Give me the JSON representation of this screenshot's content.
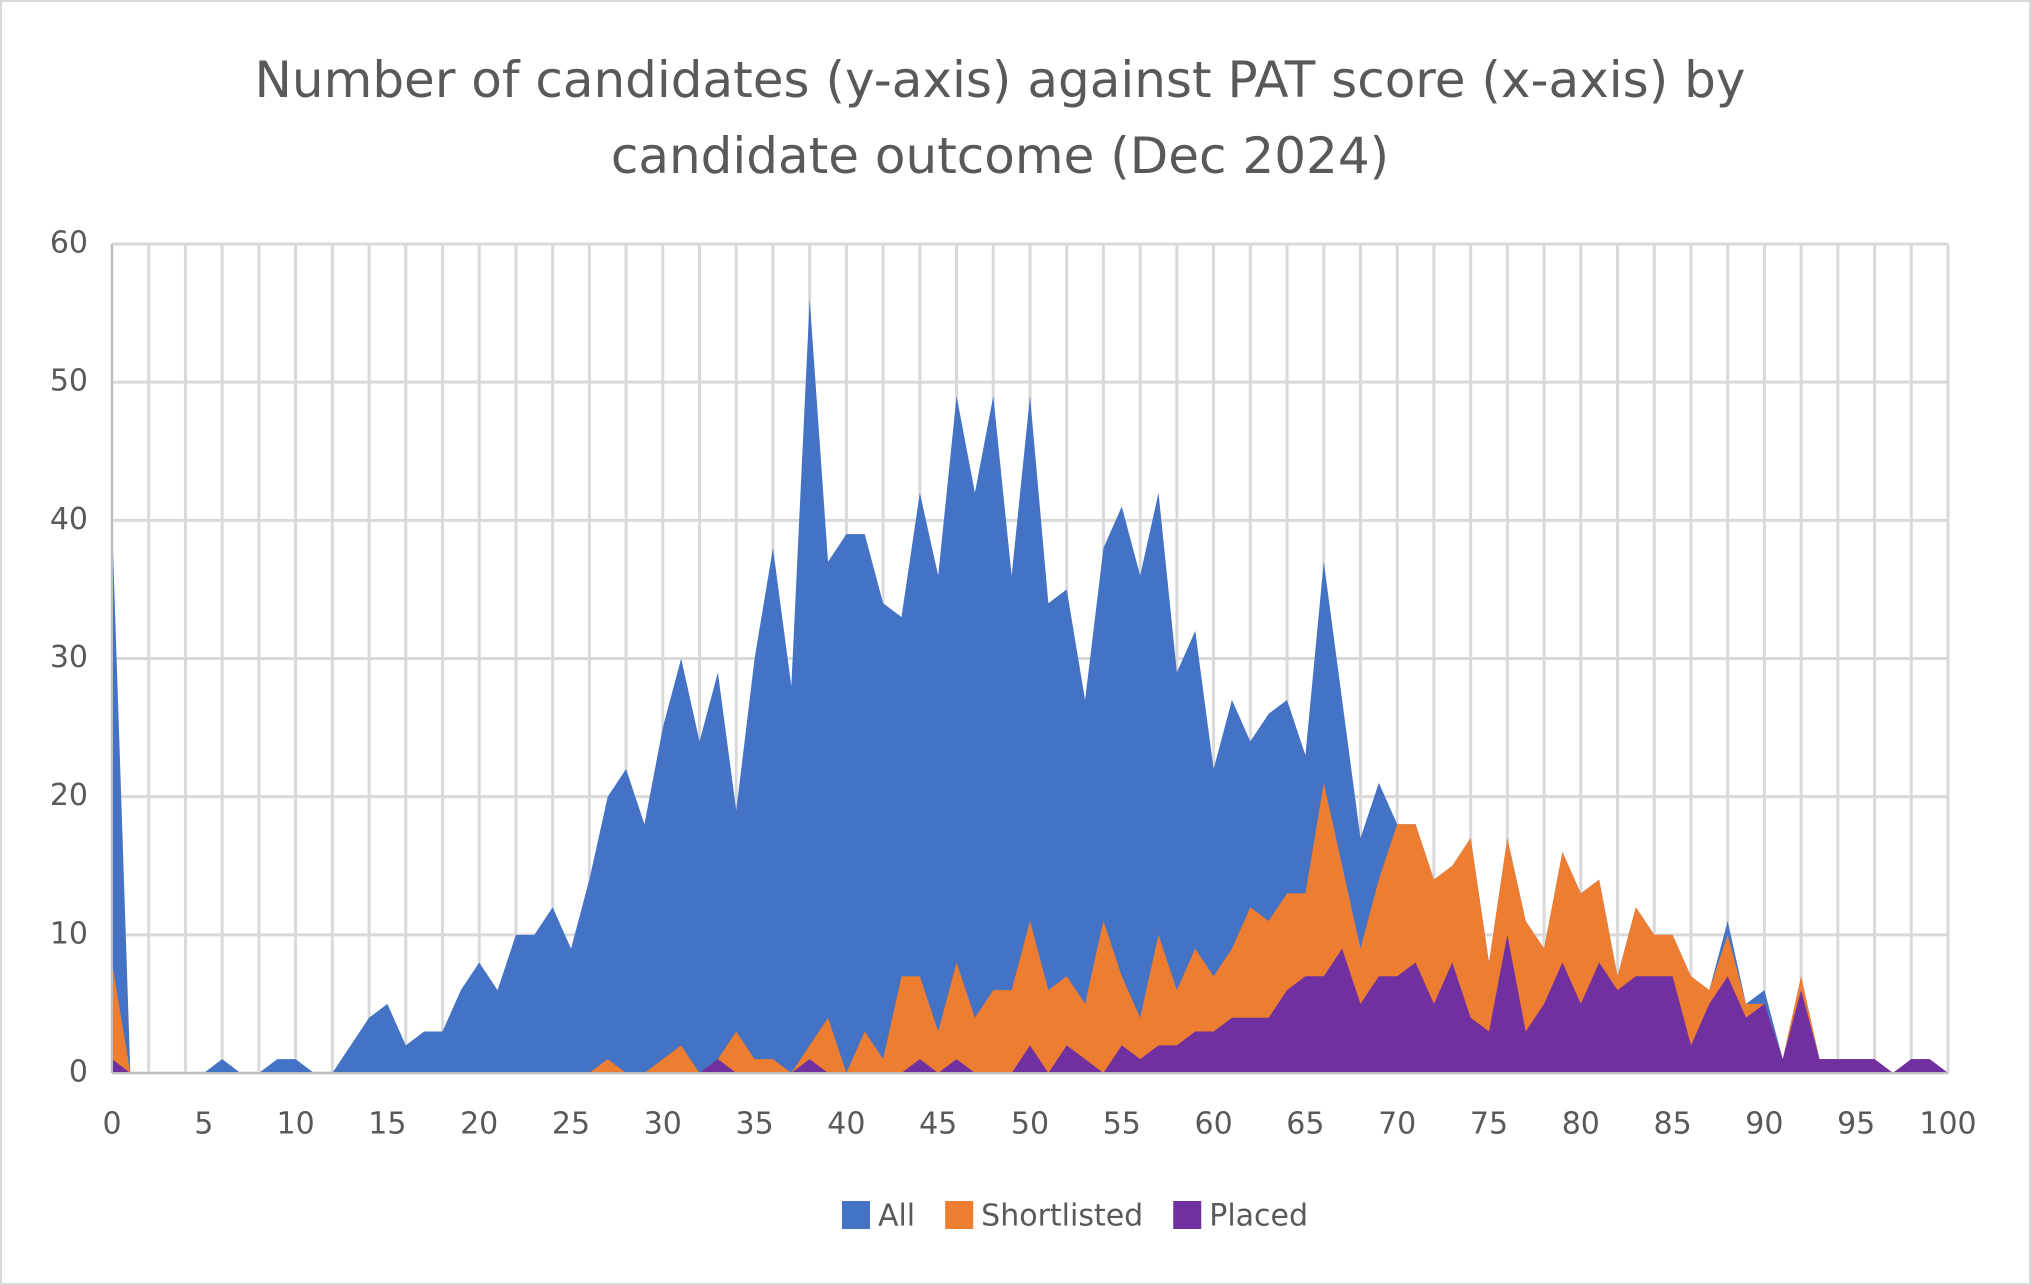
{
  "chart_data": {
    "type": "area",
    "title": "Number of candidates (y-axis) against PAT score (x-axis) by candidate outcome (Dec 2024)",
    "x": [
      0,
      1,
      2,
      3,
      4,
      5,
      6,
      7,
      8,
      9,
      10,
      11,
      12,
      13,
      14,
      15,
      16,
      17,
      18,
      19,
      20,
      21,
      22,
      23,
      24,
      25,
      26,
      27,
      28,
      29,
      30,
      31,
      32,
      33,
      34,
      35,
      36,
      37,
      38,
      39,
      40,
      41,
      42,
      43,
      44,
      45,
      46,
      47,
      48,
      49,
      50,
      51,
      52,
      53,
      54,
      55,
      56,
      57,
      58,
      59,
      60,
      61,
      62,
      63,
      64,
      65,
      66,
      67,
      68,
      69,
      70,
      71,
      72,
      73,
      74,
      75,
      76,
      77,
      78,
      79,
      80,
      81,
      82,
      83,
      84,
      85,
      86,
      87,
      88,
      89,
      90,
      91,
      92,
      93,
      94,
      95,
      96,
      97,
      98,
      99,
      100
    ],
    "series": [
      {
        "name": "All",
        "color": "#4472c4",
        "values": [
          40,
          0,
          0,
          0,
          0,
          0,
          1,
          0,
          0,
          1,
          1,
          0,
          0,
          2,
          4,
          5,
          2,
          3,
          3,
          6,
          8,
          6,
          10,
          10,
          12,
          9,
          14,
          20,
          22,
          18,
          25,
          30,
          24,
          29,
          19,
          30,
          38,
          28,
          56,
          37,
          39,
          39,
          34,
          33,
          42,
          36,
          49,
          42,
          49,
          36,
          49,
          34,
          35,
          27,
          38,
          41,
          36,
          42,
          29,
          32,
          22,
          27,
          24,
          26,
          27,
          23,
          37,
          27,
          17,
          21,
          18,
          18,
          14,
          15,
          17,
          8,
          17,
          11,
          9,
          16,
          13,
          14,
          7,
          12,
          10,
          10,
          7,
          6,
          11,
          5,
          6,
          1,
          7,
          1,
          1,
          1,
          1,
          0,
          1,
          1,
          0
        ]
      },
      {
        "name": "Shortlisted",
        "color": "#ed7d31",
        "values": [
          8,
          0,
          0,
          0,
          0,
          0,
          0,
          0,
          0,
          0,
          0,
          0,
          0,
          0,
          0,
          0,
          0,
          0,
          0,
          0,
          0,
          0,
          0,
          0,
          0,
          0,
          0,
          1,
          0,
          0,
          1,
          2,
          0,
          1,
          3,
          1,
          1,
          0,
          2,
          4,
          0,
          3,
          1,
          7,
          7,
          3,
          8,
          4,
          6,
          6,
          11,
          6,
          7,
          5,
          11,
          7,
          4,
          10,
          6,
          9,
          7,
          9,
          12,
          11,
          13,
          13,
          21,
          15,
          9,
          14,
          18,
          18,
          14,
          15,
          17,
          8,
          17,
          11,
          9,
          16,
          13,
          14,
          7,
          12,
          10,
          10,
          7,
          6,
          10,
          5,
          5,
          1,
          7,
          1,
          1,
          1,
          1,
          0,
          1,
          1,
          0
        ]
      },
      {
        "name": "Placed",
        "color": "#7030a0",
        "values": [
          1,
          0,
          0,
          0,
          0,
          0,
          0,
          0,
          0,
          0,
          0,
          0,
          0,
          0,
          0,
          0,
          0,
          0,
          0,
          0,
          0,
          0,
          0,
          0,
          0,
          0,
          0,
          0,
          0,
          0,
          0,
          0,
          0,
          1,
          0,
          0,
          0,
          0,
          1,
          0,
          0,
          0,
          0,
          0,
          1,
          0,
          1,
          0,
          0,
          0,
          2,
          0,
          2,
          1,
          0,
          2,
          1,
          2,
          2,
          3,
          3,
          4,
          4,
          4,
          6,
          7,
          7,
          9,
          5,
          7,
          7,
          8,
          5,
          8,
          4,
          3,
          10,
          3,
          5,
          8,
          5,
          8,
          6,
          7,
          7,
          7,
          2,
          5,
          7,
          4,
          5,
          1,
          6,
          1,
          1,
          1,
          1,
          0,
          1,
          1,
          0
        ]
      }
    ],
    "xlim": [
      0,
      100
    ],
    "xticks": [
      0,
      5,
      10,
      15,
      20,
      25,
      30,
      35,
      40,
      45,
      50,
      55,
      60,
      65,
      70,
      75,
      80,
      85,
      90,
      95,
      100
    ],
    "ylim": [
      0,
      60
    ],
    "yticks": [
      0,
      10,
      20,
      30,
      40,
      50,
      60
    ],
    "grid": true
  }
}
